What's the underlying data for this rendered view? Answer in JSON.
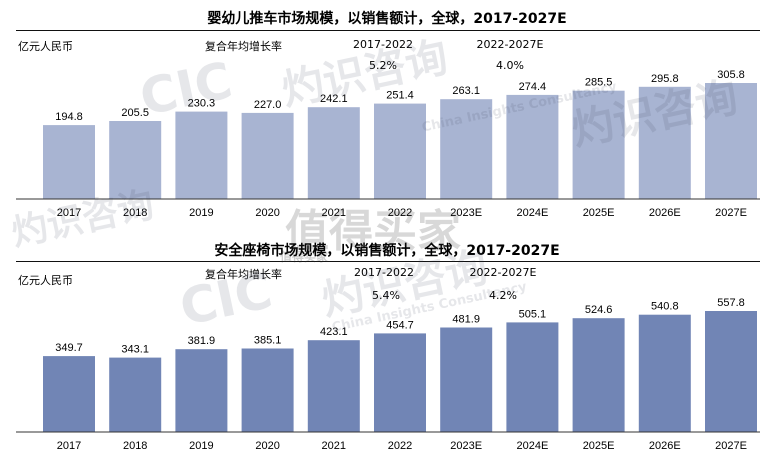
{
  "colors": {
    "top_bar": "#a8b4d2",
    "bottom_bar": "#7185b5",
    "axis": "#333333",
    "text": "#000000"
  },
  "unit_label": "亿元人民币",
  "cagr_label": "复合年均增长率",
  "chart_data": [
    {
      "type": "bar",
      "title": "婴幼儿推车市场规模，以销售额计，全球，2017-2027E",
      "categories": [
        "2017",
        "2018",
        "2019",
        "2020",
        "2021",
        "2022",
        "2023E",
        "2024E",
        "2025E",
        "2026E",
        "2027E"
      ],
      "values": [
        194.8,
        205.5,
        230.3,
        227.0,
        242.1,
        251.4,
        263.1,
        274.4,
        285.5,
        295.8,
        305.8
      ],
      "value_labels": [
        "194.8",
        "205.5",
        "230.3",
        "227.0",
        "242.1",
        "251.4",
        "263.1",
        "274.4",
        "285.5",
        "295.8",
        "305.8"
      ],
      "ylabel": "亿元人民币",
      "annotations": [
        {
          "period": "2017-2022",
          "rate": "5.2%"
        },
        {
          "period": "2022-2027E",
          "rate": "4.0%"
        }
      ],
      "grid": false
    },
    {
      "type": "bar",
      "title": "安全座椅市场规模，以销售额计，全球，2017-2027E",
      "categories": [
        "2017",
        "2018",
        "2019",
        "2020",
        "2021",
        "2022",
        "2023E",
        "2024E",
        "2025E",
        "2026E",
        "2027E"
      ],
      "values": [
        349.7,
        343.1,
        381.9,
        385.1,
        423.1,
        454.7,
        481.9,
        505.1,
        524.6,
        540.8,
        557.8
      ],
      "value_labels": [
        "349.7",
        "343.1",
        "381.9",
        "385.1",
        "423.1",
        "454.7",
        "481.9",
        "505.1",
        "524.6",
        "540.8",
        "557.8"
      ],
      "ylabel": "亿元人民币",
      "annotations": [
        {
          "period": "2017-2022",
          "rate": "5.4%"
        },
        {
          "period": "2022-2027E",
          "rate": "4.2%"
        }
      ],
      "grid": false
    }
  ],
  "watermarks": [
    "CIC",
    "灼识咨询",
    "China Insights Consultancy",
    "灼识咨询",
    "CIC",
    "灼识咨询",
    "China Insights Consultancy",
    "灼识咨询",
    "值得买家",
    "值得买家"
  ]
}
